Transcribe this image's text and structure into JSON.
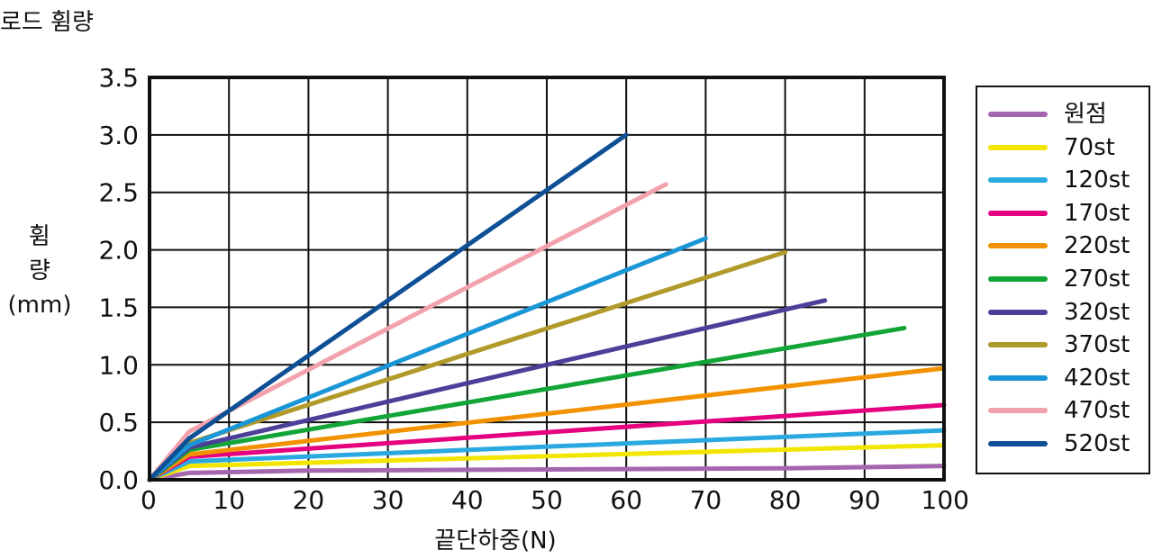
{
  "chart_data": {
    "type": "line",
    "title": "로드 휨량",
    "xlabel": "끝단하중(N)",
    "ylabel": "휨\n량\n(mm)",
    "xlim": [
      0,
      100
    ],
    "ylim": [
      0,
      3.5
    ],
    "xticks": [
      "0",
      "10",
      "20",
      "30",
      "40",
      "50",
      "60",
      "70",
      "80",
      "90",
      "100"
    ],
    "yticks": [
      "0.0",
      "0.5",
      "1.0",
      "1.5",
      "2.0",
      "2.5",
      "3.0",
      "3.5"
    ],
    "grid": true,
    "legend_position": "right",
    "series": [
      {
        "name": "원점",
        "color": "#a566b0",
        "points": [
          [
            0,
            0
          ],
          [
            5,
            0.06
          ],
          [
            20,
            0.08
          ],
          [
            50,
            0.09
          ],
          [
            80,
            0.1
          ],
          [
            100,
            0.12
          ]
        ]
      },
      {
        "name": "70st",
        "color": "#f2e600",
        "points": [
          [
            0,
            0
          ],
          [
            5,
            0.12
          ],
          [
            100,
            0.3
          ]
        ]
      },
      {
        "name": "120st",
        "color": "#2aa9e0",
        "points": [
          [
            0,
            0
          ],
          [
            5,
            0.16
          ],
          [
            100,
            0.43
          ]
        ]
      },
      {
        "name": "170st",
        "color": "#e5007f",
        "points": [
          [
            0,
            0
          ],
          [
            5,
            0.2
          ],
          [
            100,
            0.65
          ]
        ]
      },
      {
        "name": "220st",
        "color": "#f39200",
        "points": [
          [
            0,
            0
          ],
          [
            5,
            0.22
          ],
          [
            100,
            0.97
          ]
        ]
      },
      {
        "name": "270st",
        "color": "#13a538",
        "points": [
          [
            0,
            0
          ],
          [
            5,
            0.26
          ],
          [
            95,
            1.32
          ]
        ]
      },
      {
        "name": "320st",
        "color": "#4b3f98",
        "points": [
          [
            0,
            0
          ],
          [
            5,
            0.28
          ],
          [
            85,
            1.56
          ]
        ]
      },
      {
        "name": "370st",
        "color": "#b09a2a",
        "points": [
          [
            0,
            0
          ],
          [
            5,
            0.32
          ],
          [
            80,
            1.98
          ]
        ]
      },
      {
        "name": "420st",
        "color": "#1a96d6",
        "points": [
          [
            0,
            0
          ],
          [
            5,
            0.3
          ],
          [
            70,
            2.1
          ]
        ]
      },
      {
        "name": "470st",
        "color": "#f2a2ad",
        "points": [
          [
            0,
            0
          ],
          [
            5,
            0.42
          ],
          [
            65,
            2.57
          ]
        ]
      },
      {
        "name": "520st",
        "color": "#0e4f96",
        "points": [
          [
            0,
            0
          ],
          [
            5,
            0.36
          ],
          [
            60,
            3.0
          ]
        ]
      }
    ]
  }
}
